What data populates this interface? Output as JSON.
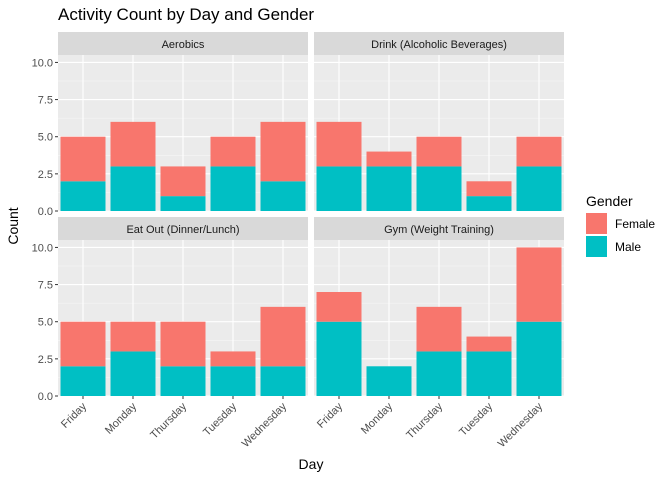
{
  "chart_data": {
    "type": "bar",
    "stacked": true,
    "title": "Activity Count by Day and Gender",
    "xlabel": "Day",
    "ylabel": "Count",
    "ylim": [
      0,
      10.5
    ],
    "yticks": [
      "0.0",
      "2.5",
      "5.0",
      "7.5",
      "10.0"
    ],
    "ytick_values": [
      0,
      2.5,
      5,
      7.5,
      10
    ],
    "categories": [
      "Friday",
      "Monday",
      "Thursday",
      "Tuesday",
      "Wednesday"
    ],
    "legend": {
      "title": "Gender",
      "placement": "right",
      "entries": [
        {
          "name": "Female",
          "color": "#F8766D"
        },
        {
          "name": "Male",
          "color": "#00BFC4"
        }
      ]
    },
    "facets": [
      {
        "title": "Aerobics",
        "series": [
          {
            "name": "Male",
            "values": [
              2,
              3,
              1,
              3,
              2
            ]
          },
          {
            "name": "Female",
            "values": [
              3,
              3,
              2,
              2,
              4
            ]
          }
        ]
      },
      {
        "title": "Drink (Alcoholic Beverages)",
        "series": [
          {
            "name": "Male",
            "values": [
              3,
              3,
              3,
              1,
              3
            ]
          },
          {
            "name": "Female",
            "values": [
              3,
              1,
              2,
              1,
              2
            ]
          }
        ]
      },
      {
        "title": "Eat Out (Dinner/Lunch)",
        "series": [
          {
            "name": "Male",
            "values": [
              2,
              3,
              2,
              2,
              2
            ]
          },
          {
            "name": "Female",
            "values": [
              3,
              2,
              3,
              1,
              4
            ]
          }
        ]
      },
      {
        "title": "Gym (Weight Training)",
        "series": [
          {
            "name": "Male",
            "values": [
              5,
              2,
              3,
              3,
              5
            ]
          },
          {
            "name": "Female",
            "values": [
              2,
              0,
              3,
              1,
              5
            ]
          }
        ]
      }
    ]
  }
}
